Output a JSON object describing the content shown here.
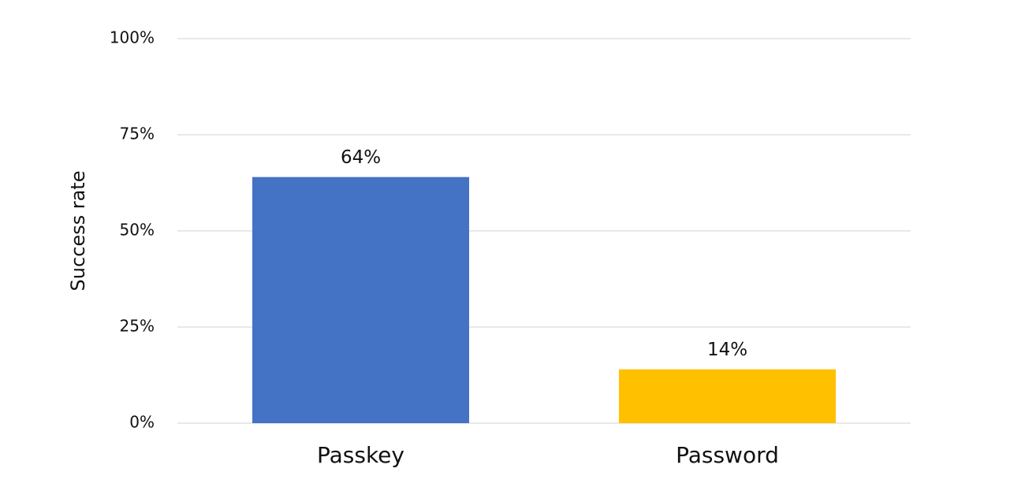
{
  "chart_data": {
    "type": "bar",
    "ylabel": "Success rate",
    "categories": [
      "Passkey",
      "Password"
    ],
    "values": [
      64,
      14
    ],
    "value_labels": [
      "64%",
      "14%"
    ],
    "colors": [
      "#4472c4",
      "#ffc000"
    ],
    "ylim": [
      0,
      100
    ],
    "yticks": [
      {
        "value": 0,
        "label": "0%"
      },
      {
        "value": 25,
        "label": "25%"
      },
      {
        "value": 50,
        "label": "50%"
      },
      {
        "value": 75,
        "label": "75%"
      },
      {
        "value": 100,
        "label": "100%"
      }
    ],
    "grid": true
  }
}
